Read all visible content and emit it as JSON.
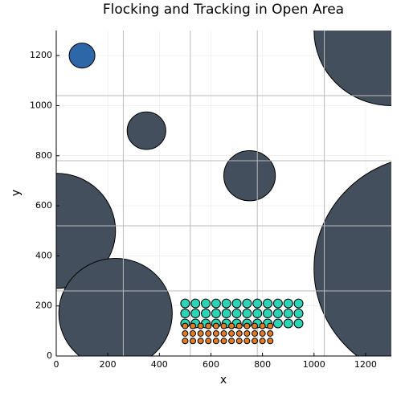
{
  "chart_data": {
    "type": "scatter",
    "title": "Flocking and Tracking in Open Area",
    "x_label": "x",
    "y_label": "y",
    "xlim": [
      0,
      1300
    ],
    "ylim": [
      0,
      1300
    ],
    "xticks": [
      0,
      200,
      400,
      600,
      800,
      1000,
      1200
    ],
    "yticks": [
      0,
      200,
      400,
      600,
      800,
      1000,
      1200
    ],
    "grid": true,
    "cell_lines": [
      260,
      520,
      780,
      1040
    ],
    "circles": [
      {
        "x": 100,
        "y": 1200,
        "r": 50,
        "color": "#2e67a8"
      },
      {
        "x": 350,
        "y": 900,
        "r": 75,
        "color": "#434f5c"
      },
      {
        "x": 750,
        "y": 720,
        "r": 100,
        "color": "#434f5c"
      },
      {
        "x": 0,
        "y": 500,
        "r": 230,
        "color": "#434f5c"
      },
      {
        "x": 230,
        "y": 170,
        "r": 220,
        "color": "#434f5c"
      },
      {
        "x": 1300,
        "y": 1300,
        "r": 300,
        "color": "#434f5c"
      },
      {
        "x": 1450,
        "y": 350,
        "r": 450,
        "color": "#434f5c"
      }
    ],
    "series": [
      {
        "color": "#2ad4b4",
        "x": [
          500,
          540,
          580,
          620,
          660,
          700,
          740,
          780,
          820,
          860,
          900,
          940,
          500,
          540,
          580,
          620,
          660,
          700,
          740,
          780,
          820,
          860,
          900,
          940,
          500,
          540,
          580,
          620,
          660,
          700,
          740,
          780,
          820,
          860,
          900,
          940
        ],
        "y": [
          210,
          210,
          210,
          210,
          210,
          210,
          210,
          210,
          210,
          210,
          210,
          210,
          170,
          170,
          170,
          170,
          170,
          170,
          170,
          170,
          170,
          170,
          170,
          170,
          130,
          130,
          130,
          130,
          130,
          130,
          130,
          130,
          130,
          130,
          130,
          130
        ]
      },
      {
        "color": "#e07b26",
        "x": [
          500,
          530,
          560,
          590,
          620,
          650,
          680,
          710,
          740,
          770,
          800,
          830,
          500,
          530,
          560,
          590,
          620,
          650,
          680,
          710,
          740,
          770,
          800,
          830,
          500,
          530,
          560,
          590,
          620,
          650,
          680,
          710,
          740,
          770,
          800,
          830
        ],
        "y": [
          120,
          120,
          120,
          120,
          120,
          120,
          120,
          120,
          120,
          120,
          120,
          120,
          90,
          90,
          90,
          90,
          90,
          90,
          90,
          90,
          90,
          90,
          90,
          90,
          60,
          60,
          60,
          60,
          60,
          60,
          60,
          60,
          60,
          60,
          60,
          60
        ]
      }
    ]
  }
}
